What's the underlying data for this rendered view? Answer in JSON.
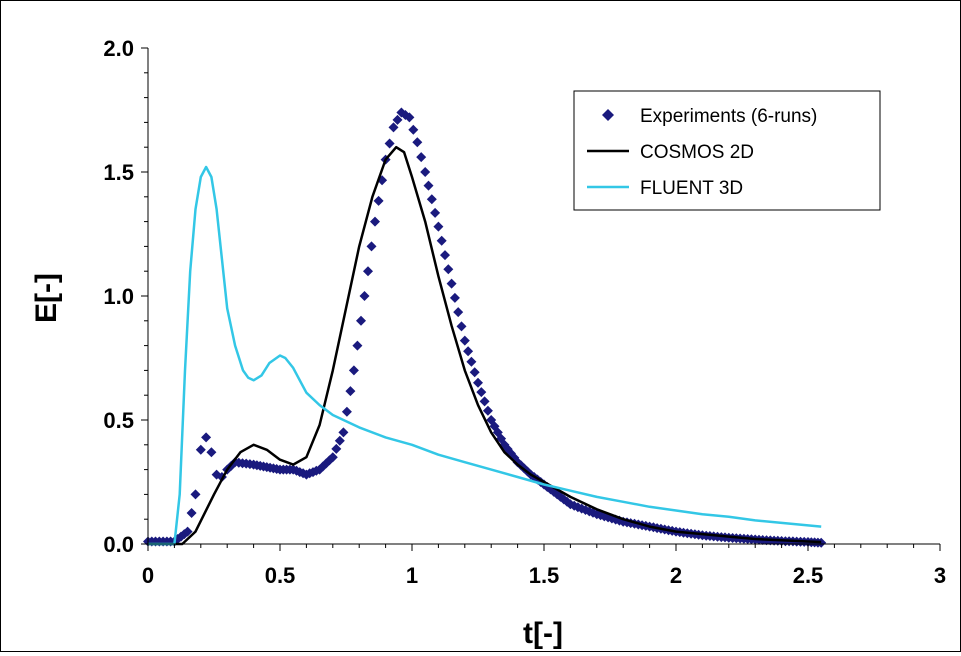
{
  "chart_data": {
    "type": "line",
    "title": "",
    "xlabel": "t[-]",
    "ylabel": "E[-]",
    "xlim": [
      0,
      3
    ],
    "ylim": [
      0,
      2.0
    ],
    "x_ticks": [
      "0",
      "0.5",
      "1",
      "1.5",
      "2",
      "2.5",
      "3"
    ],
    "y_ticks": [
      "0.0",
      "0.5",
      "1.0",
      "1.5",
      "2.0"
    ],
    "grid": false,
    "legend_position": "top-right",
    "series": [
      {
        "name": "Experiments (6-runs)",
        "style": "markers",
        "marker": "diamond",
        "color": "#1a1a7e",
        "points": [
          [
            0.0,
            0.01
          ],
          [
            0.1,
            0.01
          ],
          [
            0.15,
            0.05
          ],
          [
            0.18,
            0.2
          ],
          [
            0.2,
            0.38
          ],
          [
            0.22,
            0.43
          ],
          [
            0.24,
            0.37
          ],
          [
            0.26,
            0.28
          ],
          [
            0.28,
            0.27
          ],
          [
            0.3,
            0.3
          ],
          [
            0.33,
            0.33
          ],
          [
            0.4,
            0.32
          ],
          [
            0.45,
            0.31
          ],
          [
            0.5,
            0.3
          ],
          [
            0.55,
            0.3
          ],
          [
            0.6,
            0.28
          ],
          [
            0.65,
            0.3
          ],
          [
            0.7,
            0.35
          ],
          [
            0.74,
            0.45
          ],
          [
            0.78,
            0.7
          ],
          [
            0.82,
            1.0
          ],
          [
            0.86,
            1.3
          ],
          [
            0.9,
            1.55
          ],
          [
            0.93,
            1.68
          ],
          [
            0.96,
            1.74
          ],
          [
            0.99,
            1.72
          ],
          [
            1.02,
            1.62
          ],
          [
            1.05,
            1.5
          ],
          [
            1.1,
            1.28
          ],
          [
            1.15,
            1.05
          ],
          [
            1.2,
            0.82
          ],
          [
            1.25,
            0.65
          ],
          [
            1.3,
            0.5
          ],
          [
            1.35,
            0.4
          ],
          [
            1.4,
            0.33
          ],
          [
            1.45,
            0.28
          ],
          [
            1.5,
            0.24
          ],
          [
            1.55,
            0.2
          ],
          [
            1.6,
            0.16
          ],
          [
            1.7,
            0.12
          ],
          [
            1.8,
            0.09
          ],
          [
            1.9,
            0.07
          ],
          [
            2.0,
            0.05
          ],
          [
            2.1,
            0.035
          ],
          [
            2.2,
            0.025
          ],
          [
            2.3,
            0.018
          ],
          [
            2.4,
            0.012
          ],
          [
            2.5,
            0.008
          ],
          [
            2.55,
            0.005
          ]
        ]
      },
      {
        "name": "COSMOS 2D",
        "style": "line",
        "color": "#000000",
        "points": [
          [
            0.0,
            0.0
          ],
          [
            0.13,
            0.0
          ],
          [
            0.18,
            0.05
          ],
          [
            0.25,
            0.2
          ],
          [
            0.3,
            0.3
          ],
          [
            0.35,
            0.37
          ],
          [
            0.4,
            0.4
          ],
          [
            0.45,
            0.38
          ],
          [
            0.5,
            0.34
          ],
          [
            0.55,
            0.32
          ],
          [
            0.6,
            0.35
          ],
          [
            0.65,
            0.48
          ],
          [
            0.7,
            0.7
          ],
          [
            0.75,
            0.95
          ],
          [
            0.8,
            1.2
          ],
          [
            0.85,
            1.4
          ],
          [
            0.9,
            1.55
          ],
          [
            0.94,
            1.6
          ],
          [
            0.97,
            1.58
          ],
          [
            1.0,
            1.48
          ],
          [
            1.05,
            1.3
          ],
          [
            1.1,
            1.08
          ],
          [
            1.15,
            0.88
          ],
          [
            1.2,
            0.7
          ],
          [
            1.25,
            0.56
          ],
          [
            1.3,
            0.45
          ],
          [
            1.35,
            0.37
          ],
          [
            1.4,
            0.32
          ],
          [
            1.45,
            0.28
          ],
          [
            1.5,
            0.25
          ],
          [
            1.6,
            0.19
          ],
          [
            1.7,
            0.14
          ],
          [
            1.8,
            0.1
          ],
          [
            1.9,
            0.07
          ],
          [
            2.0,
            0.05
          ],
          [
            2.1,
            0.04
          ],
          [
            2.2,
            0.03
          ],
          [
            2.3,
            0.02
          ],
          [
            2.4,
            0.015
          ],
          [
            2.5,
            0.01
          ],
          [
            2.55,
            0.008
          ]
        ]
      },
      {
        "name": "FLUENT 3D",
        "style": "line",
        "color": "#33c7e6",
        "points": [
          [
            0.0,
            0.0
          ],
          [
            0.1,
            0.0
          ],
          [
            0.12,
            0.2
          ],
          [
            0.14,
            0.7
          ],
          [
            0.16,
            1.1
          ],
          [
            0.18,
            1.35
          ],
          [
            0.2,
            1.48
          ],
          [
            0.22,
            1.52
          ],
          [
            0.24,
            1.48
          ],
          [
            0.26,
            1.35
          ],
          [
            0.28,
            1.15
          ],
          [
            0.3,
            0.95
          ],
          [
            0.33,
            0.8
          ],
          [
            0.36,
            0.7
          ],
          [
            0.38,
            0.67
          ],
          [
            0.4,
            0.66
          ],
          [
            0.43,
            0.68
          ],
          [
            0.46,
            0.73
          ],
          [
            0.5,
            0.76
          ],
          [
            0.52,
            0.75
          ],
          [
            0.55,
            0.71
          ],
          [
            0.58,
            0.65
          ],
          [
            0.6,
            0.61
          ],
          [
            0.65,
            0.56
          ],
          [
            0.7,
            0.52
          ],
          [
            0.8,
            0.47
          ],
          [
            0.9,
            0.43
          ],
          [
            1.0,
            0.4
          ],
          [
            1.1,
            0.36
          ],
          [
            1.2,
            0.33
          ],
          [
            1.3,
            0.3
          ],
          [
            1.4,
            0.27
          ],
          [
            1.5,
            0.24
          ],
          [
            1.6,
            0.215
          ],
          [
            1.7,
            0.19
          ],
          [
            1.8,
            0.17
          ],
          [
            1.9,
            0.15
          ],
          [
            2.0,
            0.135
          ],
          [
            2.1,
            0.12
          ],
          [
            2.2,
            0.11
          ],
          [
            2.3,
            0.095
          ],
          [
            2.4,
            0.085
          ],
          [
            2.5,
            0.075
          ],
          [
            2.55,
            0.07
          ]
        ]
      }
    ]
  }
}
